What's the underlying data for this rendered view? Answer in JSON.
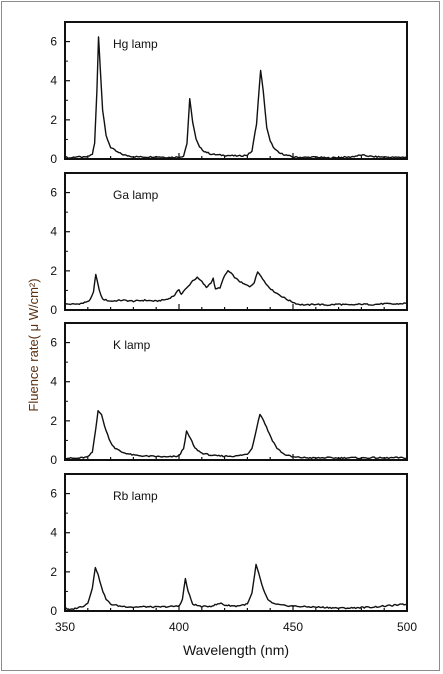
{
  "chart_data": {
    "type": "line",
    "ylabel": "Fluence rate( μ W/cm²)",
    "xlabel": "Wavelength (nm)",
    "xlim": [
      350,
      500
    ],
    "ylim": [
      0,
      7
    ],
    "x_ticks": [
      350,
      400,
      450,
      500
    ],
    "y_ticks": [
      0,
      2,
      4,
      6
    ],
    "panels": [
      {
        "name": "Hg lamp",
        "baseline": 0.12,
        "points": [
          [
            350,
            0.1
          ],
          [
            352,
            0.05
          ],
          [
            355,
            0.12
          ],
          [
            358,
            0.08
          ],
          [
            360,
            0.12
          ],
          [
            362,
            0.25
          ],
          [
            363,
            0.8
          ],
          [
            364,
            3.5
          ],
          [
            364.7,
            6.25
          ],
          [
            365.5,
            4.6
          ],
          [
            366.5,
            2.5
          ],
          [
            368,
            1.2
          ],
          [
            370,
            0.6
          ],
          [
            373,
            0.35
          ],
          [
            376,
            0.2
          ],
          [
            380,
            0.12
          ],
          [
            385,
            0.1
          ],
          [
            390,
            0.12
          ],
          [
            395,
            0.08
          ],
          [
            400,
            0.1
          ],
          [
            402,
            0.15
          ],
          [
            403.5,
            0.8
          ],
          [
            404.7,
            3.05
          ],
          [
            406,
            1.9
          ],
          [
            407.5,
            1.0
          ],
          [
            409,
            0.6
          ],
          [
            411,
            0.4
          ],
          [
            414,
            0.25
          ],
          [
            418,
            0.2
          ],
          [
            422,
            0.18
          ],
          [
            426,
            0.15
          ],
          [
            430,
            0.2
          ],
          [
            432,
            0.4
          ],
          [
            434,
            1.8
          ],
          [
            435.8,
            4.55
          ],
          [
            437,
            3.4
          ],
          [
            438.5,
            1.6
          ],
          [
            440,
            0.9
          ],
          [
            442,
            0.5
          ],
          [
            444,
            0.3
          ],
          [
            447,
            0.2
          ],
          [
            450,
            0.1
          ],
          [
            455,
            0.08
          ],
          [
            460,
            0.1
          ],
          [
            465,
            0.05
          ],
          [
            470,
            0.08
          ],
          [
            475,
            0.1
          ],
          [
            480,
            0.2
          ],
          [
            485,
            0.12
          ],
          [
            490,
            0.1
          ],
          [
            495,
            0.08
          ],
          [
            500,
            0.1
          ]
        ]
      },
      {
        "name": "Ga lamp",
        "baseline": 0.3,
        "points": [
          [
            350,
            0.3
          ],
          [
            355,
            0.3
          ],
          [
            358,
            0.35
          ],
          [
            361,
            0.5
          ],
          [
            362.5,
            0.9
          ],
          [
            363.5,
            1.85
          ],
          [
            365,
            1.0
          ],
          [
            366.5,
            0.55
          ],
          [
            370,
            0.45
          ],
          [
            375,
            0.5
          ],
          [
            380,
            0.45
          ],
          [
            385,
            0.5
          ],
          [
            390,
            0.45
          ],
          [
            395,
            0.55
          ],
          [
            398,
            0.75
          ],
          [
            400,
            1.05
          ],
          [
            401,
            0.8
          ],
          [
            402,
            0.95
          ],
          [
            404,
            1.2
          ],
          [
            406,
            1.5
          ],
          [
            408,
            1.65
          ],
          [
            410,
            1.45
          ],
          [
            412,
            1.15
          ],
          [
            414,
            1.4
          ],
          [
            415,
            1.6
          ],
          [
            416,
            1.05
          ],
          [
            418,
            1.15
          ],
          [
            420,
            1.75
          ],
          [
            421.5,
            2.0
          ],
          [
            423,
            1.85
          ],
          [
            425,
            1.6
          ],
          [
            428,
            1.35
          ],
          [
            431,
            1.2
          ],
          [
            433,
            1.4
          ],
          [
            434.5,
            1.95
          ],
          [
            436,
            1.75
          ],
          [
            438,
            1.35
          ],
          [
            441,
            1.0
          ],
          [
            445,
            0.7
          ],
          [
            448,
            0.5
          ],
          [
            452,
            0.3
          ],
          [
            456,
            0.25
          ],
          [
            460,
            0.3
          ],
          [
            465,
            0.25
          ],
          [
            470,
            0.3
          ],
          [
            475,
            0.25
          ],
          [
            480,
            0.3
          ],
          [
            485,
            0.28
          ],
          [
            490,
            0.32
          ],
          [
            495,
            0.3
          ],
          [
            500,
            0.35
          ]
        ]
      },
      {
        "name": "K lamp",
        "baseline": 0.1,
        "points": [
          [
            350,
            0.1
          ],
          [
            355,
            0.08
          ],
          [
            360,
            0.15
          ],
          [
            362,
            0.4
          ],
          [
            363.5,
            1.6
          ],
          [
            364.5,
            2.55
          ],
          [
            366,
            2.3
          ],
          [
            368,
            1.5
          ],
          [
            370,
            0.9
          ],
          [
            372,
            0.6
          ],
          [
            375,
            0.4
          ],
          [
            380,
            0.25
          ],
          [
            385,
            0.2
          ],
          [
            390,
            0.18
          ],
          [
            395,
            0.15
          ],
          [
            400,
            0.2
          ],
          [
            402,
            0.6
          ],
          [
            403.3,
            1.45
          ],
          [
            405,
            1.1
          ],
          [
            407,
            0.6
          ],
          [
            410,
            0.35
          ],
          [
            415,
            0.22
          ],
          [
            420,
            0.2
          ],
          [
            425,
            0.2
          ],
          [
            430,
            0.3
          ],
          [
            432,
            0.6
          ],
          [
            434,
            1.6
          ],
          [
            435.5,
            2.35
          ],
          [
            437,
            2.05
          ],
          [
            439,
            1.5
          ],
          [
            441,
            1.0
          ],
          [
            443,
            0.6
          ],
          [
            446,
            0.3
          ],
          [
            450,
            0.15
          ],
          [
            455,
            0.12
          ],
          [
            460,
            0.1
          ],
          [
            465,
            0.12
          ],
          [
            470,
            0.1
          ],
          [
            475,
            0.12
          ],
          [
            480,
            0.1
          ],
          [
            485,
            0.12
          ],
          [
            490,
            0.1
          ],
          [
            495,
            0.12
          ],
          [
            500,
            0.1
          ]
        ]
      },
      {
        "name": "Rb lamp",
        "baseline": 0.2,
        "points": [
          [
            350,
            0.2
          ],
          [
            351,
            0.1
          ],
          [
            352,
            0.05
          ],
          [
            355,
            0.15
          ],
          [
            358,
            0.25
          ],
          [
            360,
            0.4
          ],
          [
            362,
            1.2
          ],
          [
            363.3,
            2.2
          ],
          [
            364.5,
            1.9
          ],
          [
            366,
            1.2
          ],
          [
            368,
            0.6
          ],
          [
            370,
            0.35
          ],
          [
            374,
            0.25
          ],
          [
            380,
            0.2
          ],
          [
            385,
            0.22
          ],
          [
            390,
            0.2
          ],
          [
            395,
            0.22
          ],
          [
            400,
            0.25
          ],
          [
            401.5,
            0.6
          ],
          [
            402.8,
            1.65
          ],
          [
            404,
            1.0
          ],
          [
            406,
            0.35
          ],
          [
            410,
            0.22
          ],
          [
            414,
            0.25
          ],
          [
            417,
            0.35
          ],
          [
            418.5,
            0.4
          ],
          [
            420,
            0.3
          ],
          [
            425,
            0.25
          ],
          [
            430,
            0.35
          ],
          [
            432,
            0.9
          ],
          [
            433.8,
            2.35
          ],
          [
            435,
            1.9
          ],
          [
            437,
            1.1
          ],
          [
            439,
            0.55
          ],
          [
            442,
            0.35
          ],
          [
            446,
            0.28
          ],
          [
            450,
            0.25
          ],
          [
            455,
            0.22
          ],
          [
            460,
            0.2
          ],
          [
            465,
            0.18
          ],
          [
            470,
            0.15
          ],
          [
            475,
            0.15
          ],
          [
            480,
            0.18
          ],
          [
            485,
            0.2
          ],
          [
            490,
            0.25
          ],
          [
            495,
            0.3
          ],
          [
            500,
            0.35
          ]
        ]
      }
    ]
  }
}
